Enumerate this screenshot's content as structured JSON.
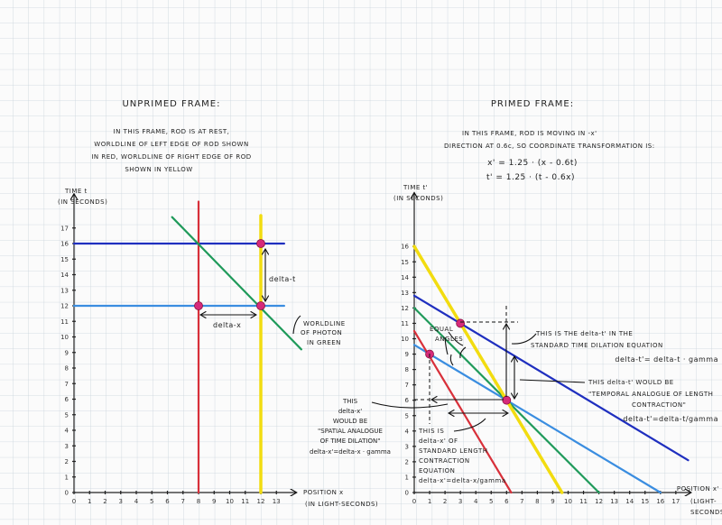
{
  "colors": {
    "red": "#d8303a",
    "yellow": "#f2dc10",
    "dark_blue": "#1f2fbf",
    "light_blue": "#3a8de0",
    "green": "#1f9a5a",
    "dot": "#d62a7a",
    "grid": "#c9d3dc"
  },
  "left": {
    "title": "UNPRIMED FRAME:",
    "description": [
      "IN THIS FRAME, ROD IS AT REST,",
      "WORLDLINE OF LEFT EDGE OF ROD SHOWN",
      "IN RED, WORLDLINE OF RIGHT EDGE OF ROD",
      "SHOWN IN YELLOW"
    ],
    "y_axis_label": [
      "TIME t",
      "(IN SECONDS)"
    ],
    "x_axis_label": [
      "POSITION x",
      "(IN LIGHT-SECONDS)"
    ],
    "x_ticks": [
      0,
      1,
      2,
      3,
      4,
      5,
      6,
      7,
      8,
      9,
      10,
      11,
      12,
      13
    ],
    "y_ticks": [
      0,
      1,
      2,
      3,
      4,
      5,
      6,
      7,
      8,
      9,
      10,
      11,
      12,
      13,
      14,
      15,
      16,
      17
    ],
    "lines": [
      {
        "color": "light_blue",
        "from": [
          0,
          12
        ],
        "to": [
          13.5,
          12
        ]
      },
      {
        "color": "dark_blue",
        "from": [
          0,
          16
        ],
        "to": [
          13.5,
          16
        ]
      },
      {
        "color": "red",
        "from": [
          8,
          0
        ],
        "to": [
          8,
          18.7
        ]
      },
      {
        "color": "yellow",
        "from": [
          12,
          0
        ],
        "to": [
          12,
          17.8
        ]
      },
      {
        "color": "green",
        "from": [
          6.3,
          17.7
        ],
        "to": [
          14.6,
          9.2
        ]
      }
    ],
    "points": [
      [
        8,
        12
      ],
      [
        12,
        12
      ],
      [
        12,
        16
      ]
    ],
    "delta_t_label": "delta-t",
    "delta_x_label": "delta-x",
    "photon_label": [
      "WORLDLINE",
      "OF PHOTON",
      "IN GREEN"
    ]
  },
  "right": {
    "title": "PRIMED FRAME:",
    "description": [
      "IN THIS FRAME, ROD IS MOVING IN -x'",
      "DIRECTION AT 0.6c, SO COORDINATE TRANSFORMATION IS:"
    ],
    "equations": [
      "x' = 1.25 · (x - 0.6t)",
      "t' = 1.25 · (t - 0.6x)"
    ],
    "y_axis_label": [
      "TIME t'",
      "(IN SECONDS)"
    ],
    "x_axis_label": [
      "POSITION x'",
      "(LIGHT-",
      "SECONDS)"
    ],
    "x_ticks": [
      0,
      1,
      2,
      3,
      4,
      5,
      6,
      7,
      8,
      9,
      10,
      11,
      12,
      13,
      14,
      15,
      16,
      17
    ],
    "y_ticks": [
      0,
      1,
      2,
      3,
      4,
      5,
      6,
      7,
      8,
      9,
      10,
      11,
      12,
      13,
      14,
      15,
      16
    ],
    "lines": [
      {
        "color": "dark_blue",
        "from": [
          0,
          12.8
        ],
        "to": [
          17.8,
          2.1
        ]
      },
      {
        "color": "light_blue",
        "from": [
          0,
          9.6
        ],
        "to": [
          16,
          0
        ]
      },
      {
        "color": "green",
        "from": [
          0,
          12
        ],
        "to": [
          12,
          0
        ]
      },
      {
        "color": "yellow",
        "from": [
          0,
          16
        ],
        "to": [
          9.6,
          0
        ]
      },
      {
        "color": "red",
        "from": [
          0,
          10.5
        ],
        "to": [
          6.3,
          0
        ]
      }
    ],
    "points": [
      [
        1,
        9
      ],
      [
        3,
        11
      ],
      [
        6,
        6
      ]
    ],
    "equal_angles": [
      "EQUAL",
      "ANGLES"
    ],
    "spatial_note": [
      "THIS",
      "delta-x'",
      "WOULD BE",
      "\"SPATIAL ANALOGUE",
      "OF TIME DILATION\"",
      "delta-x'=delta-x · gamma"
    ],
    "length_note": [
      "THIS IS",
      "delta-x' OF",
      "STANDARD LENGTH",
      "CONTRACTION",
      "EQUATION",
      "delta-x'=delta-x/gamma"
    ],
    "dilation_note": [
      "THIS IS THE delta-t' IN THE",
      "STANDARD TIME DILATION EQUATION",
      "delta-t'= delta-t · gamma"
    ],
    "temporal_note": [
      "THIS delta-t' WOULD BE",
      "\"TEMPORAL ANALOGUE OF LENGTH",
      "CONTRACTION\"",
      "delta-t'=delta-t/gamma"
    ]
  }
}
